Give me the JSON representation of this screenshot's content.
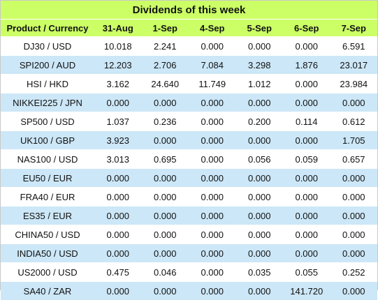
{
  "title": "Dividends of this week",
  "headers": [
    "Product / Currency",
    "31-Aug",
    "1-Sep",
    "4-Sep",
    "5-Sep",
    "6-Sep",
    "7-Sep"
  ],
  "rows": [
    [
      "DJ30 / USD",
      "10.018",
      "2.241",
      "0.000",
      "0.000",
      "0.000",
      "6.591"
    ],
    [
      "SPI200 / AUD",
      "12.203",
      "2.706",
      "7.084",
      "3.298",
      "1.876",
      "23.017"
    ],
    [
      "HSI / HKD",
      "3.162",
      "24.640",
      "11.749",
      "1.012",
      "0.000",
      "23.984"
    ],
    [
      "NIKKEI225 / JPN",
      "0.000",
      "0.000",
      "0.000",
      "0.000",
      "0.000",
      "0.000"
    ],
    [
      "SP500 / USD",
      "1.037",
      "0.236",
      "0.000",
      "0.200",
      "0.114",
      "0.612"
    ],
    [
      "UK100 / GBP",
      "3.923",
      "0.000",
      "0.000",
      "0.000",
      "0.000",
      "1.705"
    ],
    [
      "NAS100 / USD",
      "3.013",
      "0.695",
      "0.000",
      "0.056",
      "0.059",
      "0.657"
    ],
    [
      "EU50 / EUR",
      "0.000",
      "0.000",
      "0.000",
      "0.000",
      "0.000",
      "0.000"
    ],
    [
      "FRA40 / EUR",
      "0.000",
      "0.000",
      "0.000",
      "0.000",
      "0.000",
      "0.000"
    ],
    [
      "ES35 / EUR",
      "0.000",
      "0.000",
      "0.000",
      "0.000",
      "0.000",
      "0.000"
    ],
    [
      "CHINA50 / USD",
      "0.000",
      "0.000",
      "0.000",
      "0.000",
      "0.000",
      "0.000"
    ],
    [
      "INDIA50 / USD",
      "0.000",
      "0.000",
      "0.000",
      "0.000",
      "0.000",
      "0.000"
    ],
    [
      "US2000 / USD",
      "0.475",
      "0.046",
      "0.000",
      "0.035",
      "0.055",
      "0.252"
    ],
    [
      "SA40 / ZAR",
      "0.000",
      "0.000",
      "0.000",
      "0.000",
      "141.720",
      "0.000"
    ]
  ],
  "colors": {
    "header_bg": "#ccff66",
    "stripe_bg": "#cce7f7",
    "row_bg": "#ffffff"
  }
}
